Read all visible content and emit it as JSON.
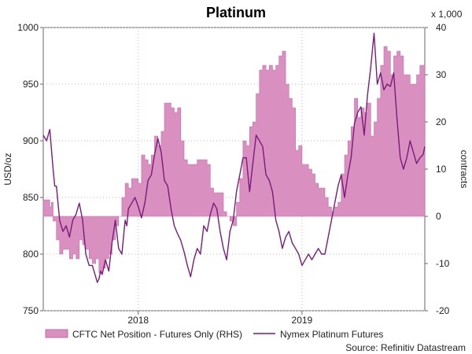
{
  "chart_data": {
    "type": "line",
    "title": "Platinum",
    "source": "Source: Refinitiv Datastream",
    "left_axis": {
      "label": "USD/oz",
      "ylim": [
        750,
        1000
      ],
      "ticks": [
        "750",
        "800",
        "850",
        "900",
        "950",
        "1000"
      ]
    },
    "right_axis": {
      "label": "contracts",
      "multiplier_label": "x 1,000",
      "ylim": [
        -20,
        40
      ],
      "ticks": [
        "-20",
        "-10",
        "0",
        "10",
        "20",
        "30",
        "40"
      ]
    },
    "x_axis": {
      "range": [
        2017.42,
        2019.75
      ],
      "ticks": [
        {
          "label": "2018",
          "pos": 2018.0
        },
        {
          "label": "2019",
          "pos": 2019.0
        }
      ]
    },
    "series": [
      {
        "name": "CFTC Net Position - Futures Only (RHS)",
        "axis": "right",
        "kind": "area",
        "color": "#d98fbf",
        "x": [
          2017.42,
          2017.46,
          2017.47,
          2017.48,
          2017.5,
          2017.52,
          2017.54,
          2017.56,
          2017.58,
          2017.6,
          2017.62,
          2017.64,
          2017.66,
          2017.68,
          2017.7,
          2017.72,
          2017.74,
          2017.76,
          2017.78,
          2017.8,
          2017.82,
          2017.84,
          2017.86,
          2017.88,
          2017.9,
          2017.92,
          2017.94,
          2017.96,
          2017.98,
          2018.0,
          2018.02,
          2018.04,
          2018.06,
          2018.08,
          2018.1,
          2018.12,
          2018.14,
          2018.16,
          2018.18,
          2018.2,
          2018.22,
          2018.24,
          2018.26,
          2018.28,
          2018.3,
          2018.32,
          2018.34,
          2018.36,
          2018.38,
          2018.4,
          2018.42,
          2018.44,
          2018.46,
          2018.48,
          2018.5,
          2018.52,
          2018.54,
          2018.56,
          2018.58,
          2018.6,
          2018.62,
          2018.64,
          2018.66,
          2018.68,
          2018.7,
          2018.72,
          2018.74,
          2018.76,
          2018.78,
          2018.8,
          2018.82,
          2018.84,
          2018.86,
          2018.88,
          2018.9,
          2018.92,
          2018.94,
          2018.96,
          2018.98,
          2019.0,
          2019.02,
          2019.04,
          2019.06,
          2019.08,
          2019.1,
          2019.12,
          2019.14,
          2019.16,
          2019.18,
          2019.2,
          2019.22,
          2019.24,
          2019.26,
          2019.28,
          2019.3,
          2019.32,
          2019.34,
          2019.36,
          2019.38,
          2019.4,
          2019.42,
          2019.44,
          2019.46,
          2019.48,
          2019.5,
          2019.52,
          2019.54,
          2019.56,
          2019.58,
          2019.6,
          2019.62,
          2019.64,
          2019.66,
          2019.68,
          2019.7,
          2019.72,
          2019.75
        ],
        "values": [
          3.5,
          2,
          3,
          -1,
          -5,
          -8,
          -7,
          -7,
          -9,
          -8,
          -9,
          -5,
          -6,
          -7,
          -9,
          -10,
          -9,
          -12,
          -11,
          -9,
          -8,
          -5,
          -2,
          0,
          4,
          7,
          6,
          8,
          8,
          7,
          13,
          12,
          11,
          13,
          17,
          15,
          18,
          24,
          24,
          23,
          22,
          23,
          16,
          12,
          11,
          11,
          11,
          12,
          12,
          12,
          11,
          6,
          5,
          5,
          5,
          1,
          0,
          -1,
          -2,
          3,
          8,
          16,
          15,
          19,
          20,
          26,
          31,
          32,
          31,
          32,
          31,
          32,
          34,
          35,
          28,
          25,
          23,
          14,
          15,
          11,
          11,
          10,
          9,
          7,
          6,
          6,
          4,
          2,
          1,
          2,
          3,
          9,
          13,
          16,
          19,
          25,
          21,
          23,
          22,
          24,
          17,
          20,
          25,
          32,
          36,
          35,
          30,
          34,
          35,
          34,
          30,
          30,
          28,
          28,
          30,
          32,
          32
        ]
      },
      {
        "name": "Nymex Platinum Futures",
        "axis": "left",
        "kind": "line",
        "color": "#7a1c7a",
        "x": [
          2017.42,
          2017.44,
          2017.46,
          2017.48,
          2017.49,
          2017.5,
          2017.52,
          2017.54,
          2017.56,
          2017.58,
          2017.6,
          2017.62,
          2017.64,
          2017.66,
          2017.68,
          2017.7,
          2017.72,
          2017.74,
          2017.75,
          2017.76,
          2017.77,
          2017.78,
          2017.8,
          2017.82,
          2017.84,
          2017.86,
          2017.88,
          2017.9,
          2017.92,
          2017.93,
          2017.94,
          2017.96,
          2017.98,
          2018.0,
          2018.02,
          2018.04,
          2018.06,
          2018.08,
          2018.1,
          2018.12,
          2018.14,
          2018.16,
          2018.18,
          2018.2,
          2018.22,
          2018.24,
          2018.26,
          2018.28,
          2018.3,
          2018.32,
          2018.34,
          2018.36,
          2018.38,
          2018.4,
          2018.42,
          2018.44,
          2018.46,
          2018.48,
          2018.5,
          2018.52,
          2018.54,
          2018.56,
          2018.58,
          2018.6,
          2018.62,
          2018.64,
          2018.66,
          2018.68,
          2018.7,
          2018.72,
          2018.74,
          2018.76,
          2018.78,
          2018.8,
          2018.82,
          2018.84,
          2018.86,
          2018.88,
          2018.9,
          2018.92,
          2018.94,
          2018.96,
          2018.98,
          2019.0,
          2019.02,
          2019.04,
          2019.06,
          2019.08,
          2019.1,
          2019.12,
          2019.14,
          2019.16,
          2019.18,
          2019.2,
          2019.22,
          2019.24,
          2019.26,
          2019.28,
          2019.3,
          2019.32,
          2019.34,
          2019.36,
          2019.38,
          2019.4,
          2019.42,
          2019.44,
          2019.46,
          2019.48,
          2019.5,
          2019.52,
          2019.54,
          2019.56,
          2019.58,
          2019.6,
          2019.62,
          2019.64,
          2019.66,
          2019.68,
          2019.7,
          2019.72,
          2019.74,
          2019.75
        ],
        "values": [
          905,
          900,
          910,
          875,
          860,
          860,
          830,
          820,
          825,
          815,
          830,
          835,
          845,
          830,
          800,
          790,
          790,
          780,
          775,
          778,
          785,
          782,
          795,
          785,
          810,
          830,
          805,
          800,
          830,
          825,
          840,
          845,
          850,
          842,
          832,
          845,
          865,
          870,
          888,
          902,
          890,
          865,
          860,
          840,
          825,
          818,
          812,
          802,
          790,
          780,
          795,
          805,
          800,
          825,
          820,
          835,
          845,
          840,
          820,
          805,
          795,
          820,
          830,
          855,
          870,
          885,
          885,
          855,
          880,
          905,
          900,
          895,
          870,
          865,
          855,
          830,
          820,
          805,
          815,
          820,
          810,
          805,
          800,
          790,
          795,
          800,
          795,
          800,
          805,
          800,
          800,
          815,
          830,
          845,
          860,
          870,
          850,
          870,
          885,
          915,
          925,
          930,
          905,
          940,
          965,
          995,
          950,
          960,
          945,
          950,
          948,
          960,
          920,
          885,
          875,
          885,
          900,
          890,
          880,
          885,
          888,
          895
        ]
      }
    ]
  }
}
